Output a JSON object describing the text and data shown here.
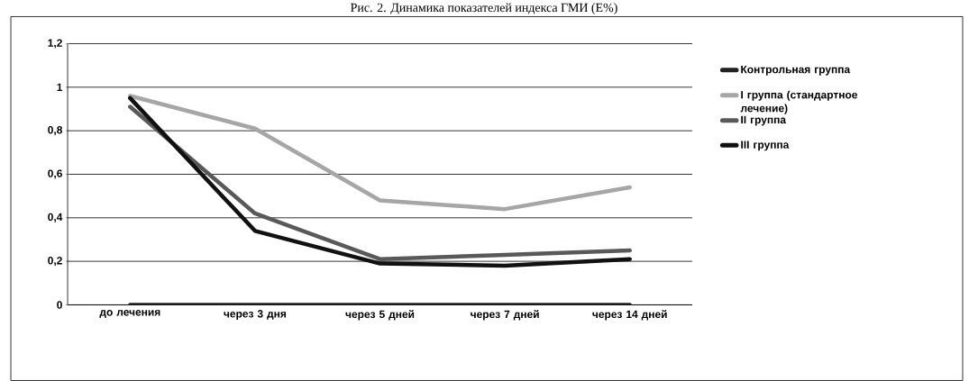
{
  "chart_data": {
    "type": "line",
    "title": "Рис. 2. Динамика показателей индекса ГМИ (Е%)",
    "categories": [
      "до лечения",
      "через 3 дня",
      "через 5 дней",
      "через 7 дней",
      "через 14 дней"
    ],
    "series": [
      {
        "name": "Контрольная группа",
        "color": "#222222",
        "values": [
          0,
          0,
          0,
          0,
          0
        ]
      },
      {
        "name": "I группа (стандартное лечение)",
        "color": "#a6a6a6",
        "values": [
          0.96,
          0.81,
          0.48,
          0.44,
          0.54
        ]
      },
      {
        "name": "II группа",
        "color": "#595959",
        "values": [
          0.91,
          0.42,
          0.21,
          0.23,
          0.25
        ]
      },
      {
        "name": "III группа",
        "color": "#111111",
        "values": [
          0.95,
          0.34,
          0.19,
          0.18,
          0.21
        ]
      }
    ],
    "ylim": [
      0,
      1.2
    ],
    "yticks": [
      {
        "value": 0,
        "label": "0"
      },
      {
        "value": 0.2,
        "label": "0,2"
      },
      {
        "value": 0.4,
        "label": "0,4"
      },
      {
        "value": 0.6,
        "label": "0,6"
      },
      {
        "value": 0.8,
        "label": "0,8"
      },
      {
        "value": 1,
        "label": "1"
      },
      {
        "value": 1.2,
        "label": "1,2"
      }
    ],
    "grid": "y",
    "legend": "right",
    "marker": "none",
    "line_style": "solid"
  }
}
